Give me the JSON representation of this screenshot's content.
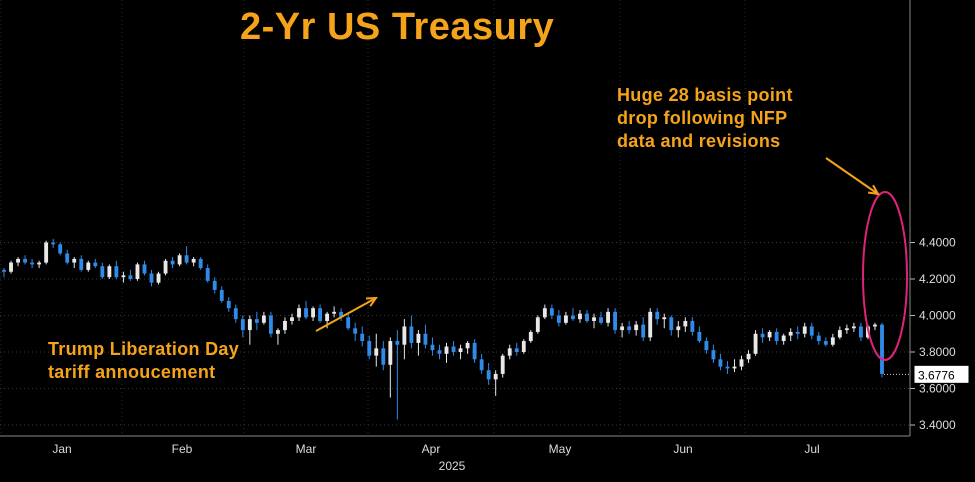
{
  "chart_data": {
    "type": "candlestick",
    "title": "2-Yr US Treasury",
    "year_label": "2025",
    "x_ticks": [
      "Jan",
      "Feb",
      "Mar",
      "Apr",
      "May",
      "Jun",
      "Jul"
    ],
    "y_ticks": [
      "4.4000",
      "4.2000",
      "4.0000",
      "3.8000",
      "3.6000",
      "3.4000"
    ],
    "ylim": [
      3.38,
      4.48
    ],
    "last_value": "3.6776",
    "up_color": "#e8e8e8",
    "down_color": "#2f8ae8",
    "accent_color": "#f5a31a",
    "highlight_color": "#e0237a",
    "grid": true,
    "annotations": [
      {
        "lines": [
          "Huge 28 basis point",
          "drop following NFP",
          "data and revisions"
        ]
      },
      {
        "lines": [
          "Trump Liberation Day",
          "tariff annoucement"
        ]
      }
    ],
    "candles": [
      [
        4.25,
        4.26,
        4.21,
        4.24
      ],
      [
        4.24,
        4.3,
        4.23,
        4.29
      ],
      [
        4.29,
        4.32,
        4.27,
        4.31
      ],
      [
        4.31,
        4.33,
        4.28,
        4.29
      ],
      [
        4.29,
        4.31,
        4.26,
        4.28
      ],
      [
        4.28,
        4.3,
        4.26,
        4.29
      ],
      [
        4.29,
        4.41,
        4.28,
        4.4
      ],
      [
        4.4,
        4.42,
        4.37,
        4.39
      ],
      [
        4.39,
        4.4,
        4.33,
        4.34
      ],
      [
        4.34,
        4.36,
        4.28,
        4.29
      ],
      [
        4.29,
        4.32,
        4.26,
        4.31
      ],
      [
        4.31,
        4.33,
        4.24,
        4.25
      ],
      [
        4.25,
        4.3,
        4.24,
        4.29
      ],
      [
        4.29,
        4.31,
        4.26,
        4.27
      ],
      [
        4.27,
        4.29,
        4.2,
        4.21
      ],
      [
        4.21,
        4.28,
        4.2,
        4.27
      ],
      [
        4.27,
        4.3,
        4.2,
        4.21
      ],
      [
        4.21,
        4.24,
        4.18,
        4.22
      ],
      [
        4.22,
        4.25,
        4.19,
        4.2
      ],
      [
        4.2,
        4.29,
        4.19,
        4.28
      ],
      [
        4.28,
        4.3,
        4.22,
        4.23
      ],
      [
        4.23,
        4.25,
        4.16,
        4.18
      ],
      [
        4.18,
        4.24,
        4.17,
        4.23
      ],
      [
        4.23,
        4.31,
        4.22,
        4.3
      ],
      [
        4.3,
        4.32,
        4.26,
        4.28
      ],
      [
        4.28,
        4.34,
        4.27,
        4.33
      ],
      [
        4.33,
        4.38,
        4.28,
        4.29
      ],
      [
        4.29,
        4.32,
        4.27,
        4.31
      ],
      [
        4.31,
        4.32,
        4.25,
        4.26
      ],
      [
        4.26,
        4.28,
        4.18,
        4.19
      ],
      [
        4.19,
        4.21,
        4.12,
        4.14
      ],
      [
        4.14,
        4.16,
        4.07,
        4.08
      ],
      [
        4.08,
        4.1,
        4.02,
        4.04
      ],
      [
        4.04,
        4.06,
        3.96,
        3.98
      ],
      [
        3.98,
        4.0,
        3.88,
        3.92
      ],
      [
        3.92,
        4.0,
        3.84,
        3.98
      ],
      [
        3.98,
        4.02,
        3.92,
        3.96
      ],
      [
        3.96,
        4.02,
        3.95,
        4.0
      ],
      [
        4.0,
        4.02,
        3.88,
        3.9
      ],
      [
        3.9,
        3.93,
        3.84,
        3.92
      ],
      [
        3.92,
        3.99,
        3.9,
        3.97
      ],
      [
        3.97,
        4.01,
        3.95,
        3.99
      ],
      [
        3.99,
        4.06,
        3.97,
        4.04
      ],
      [
        4.04,
        4.08,
        3.98,
        3.99
      ],
      [
        3.99,
        4.05,
        3.97,
        4.04
      ],
      [
        4.04,
        4.06,
        3.96,
        3.97
      ],
      [
        3.97,
        4.02,
        3.93,
        4.01
      ],
      [
        4.01,
        4.05,
        3.99,
        4.02
      ],
      [
        4.02,
        4.04,
        3.97,
        3.99
      ],
      [
        3.99,
        4.01,
        3.92,
        3.93
      ],
      [
        3.93,
        3.96,
        3.86,
        3.9
      ],
      [
        3.9,
        3.94,
        3.83,
        3.86
      ],
      [
        3.86,
        3.89,
        3.76,
        3.78
      ],
      [
        3.78,
        3.9,
        3.72,
        3.82
      ],
      [
        3.82,
        3.86,
        3.7,
        3.73
      ],
      [
        3.73,
        3.88,
        3.55,
        3.86
      ],
      [
        3.86,
        3.92,
        3.43,
        3.84
      ],
      [
        3.84,
        3.98,
        3.76,
        3.94
      ],
      [
        3.94,
        4.0,
        3.82,
        3.85
      ],
      [
        3.85,
        3.92,
        3.78,
        3.9
      ],
      [
        3.9,
        3.95,
        3.82,
        3.84
      ],
      [
        3.84,
        3.88,
        3.78,
        3.81
      ],
      [
        3.81,
        3.84,
        3.76,
        3.79
      ],
      [
        3.79,
        3.85,
        3.74,
        3.83
      ],
      [
        3.83,
        3.86,
        3.78,
        3.8
      ],
      [
        3.8,
        3.84,
        3.76,
        3.82
      ],
      [
        3.82,
        3.86,
        3.79,
        3.85
      ],
      [
        3.85,
        3.87,
        3.74,
        3.76
      ],
      [
        3.76,
        3.79,
        3.68,
        3.7
      ],
      [
        3.7,
        3.74,
        3.62,
        3.65
      ],
      [
        3.65,
        3.7,
        3.56,
        3.68
      ],
      [
        3.68,
        3.79,
        3.66,
        3.78
      ],
      [
        3.78,
        3.84,
        3.76,
        3.82
      ],
      [
        3.82,
        3.85,
        3.78,
        3.8
      ],
      [
        3.8,
        3.87,
        3.79,
        3.86
      ],
      [
        3.86,
        3.92,
        3.85,
        3.91
      ],
      [
        3.91,
        4.0,
        3.9,
        3.99
      ],
      [
        3.99,
        4.06,
        3.98,
        4.04
      ],
      [
        4.04,
        4.06,
        3.98,
        4.0
      ],
      [
        4.0,
        4.03,
        3.94,
        3.96
      ],
      [
        3.96,
        4.02,
        3.95,
        4.0
      ],
      [
        4.0,
        4.04,
        3.97,
        3.98
      ],
      [
        3.98,
        4.03,
        3.96,
        4.01
      ],
      [
        4.01,
        4.03,
        3.96,
        3.97
      ],
      [
        3.97,
        4.01,
        3.93,
        3.99
      ],
      [
        3.99,
        4.02,
        3.95,
        3.96
      ],
      [
        3.96,
        4.04,
        3.94,
        4.02
      ],
      [
        4.02,
        4.04,
        3.9,
        3.92
      ],
      [
        3.92,
        3.96,
        3.88,
        3.94
      ],
      [
        3.94,
        3.97,
        3.9,
        3.92
      ],
      [
        3.92,
        3.97,
        3.89,
        3.95
      ],
      [
        3.95,
        3.99,
        3.86,
        3.88
      ],
      [
        3.88,
        4.04,
        3.86,
        4.02
      ],
      [
        4.02,
        4.04,
        3.95,
        3.98
      ],
      [
        3.98,
        4.01,
        3.93,
        3.99
      ],
      [
        3.99,
        4.0,
        3.89,
        3.92
      ],
      [
        3.92,
        3.97,
        3.88,
        3.94
      ],
      [
        3.94,
        3.99,
        3.91,
        3.97
      ],
      [
        3.97,
        3.99,
        3.89,
        3.91
      ],
      [
        3.91,
        3.94,
        3.85,
        3.86
      ],
      [
        3.86,
        3.88,
        3.79,
        3.81
      ],
      [
        3.81,
        3.84,
        3.74,
        3.76
      ],
      [
        3.76,
        3.79,
        3.7,
        3.72
      ],
      [
        3.72,
        3.75,
        3.68,
        3.71
      ],
      [
        3.71,
        3.76,
        3.69,
        3.72
      ],
      [
        3.72,
        3.78,
        3.7,
        3.76
      ],
      [
        3.76,
        3.81,
        3.74,
        3.79
      ],
      [
        3.79,
        3.92,
        3.78,
        3.9
      ],
      [
        3.9,
        3.93,
        3.85,
        3.88
      ],
      [
        3.88,
        3.92,
        3.86,
        3.91
      ],
      [
        3.91,
        3.93,
        3.84,
        3.86
      ],
      [
        3.86,
        3.9,
        3.84,
        3.89
      ],
      [
        3.89,
        3.93,
        3.86,
        3.91
      ],
      [
        3.91,
        3.94,
        3.87,
        3.9
      ],
      [
        3.9,
        3.96,
        3.88,
        3.94
      ],
      [
        3.94,
        3.96,
        3.87,
        3.89
      ],
      [
        3.89,
        3.91,
        3.84,
        3.86
      ],
      [
        3.86,
        3.88,
        3.83,
        3.84
      ],
      [
        3.84,
        3.9,
        3.83,
        3.88
      ],
      [
        3.88,
        3.94,
        3.87,
        3.92
      ],
      [
        3.92,
        3.95,
        3.9,
        3.93
      ],
      [
        3.93,
        3.96,
        3.91,
        3.94
      ],
      [
        3.94,
        3.96,
        3.86,
        3.88
      ],
      [
        3.88,
        3.95,
        3.87,
        3.94
      ],
      [
        3.94,
        3.96,
        3.92,
        3.95
      ],
      [
        3.95,
        3.96,
        3.66,
        3.68
      ]
    ]
  }
}
